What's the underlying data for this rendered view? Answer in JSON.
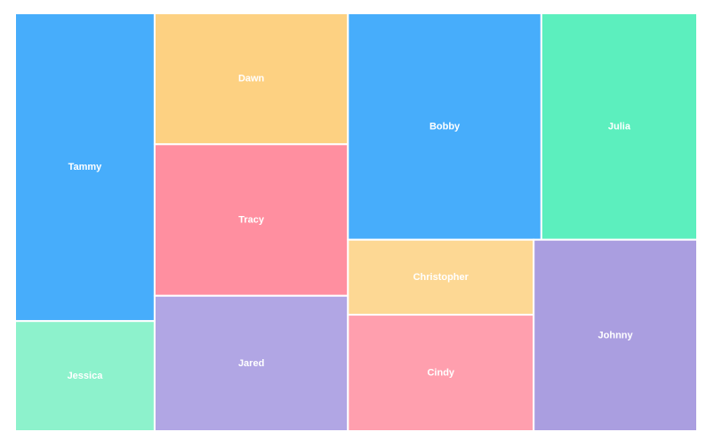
{
  "chart_data": {
    "type": "treemap",
    "categories": [
      "Tammy",
      "Jessica",
      "Dawn",
      "Tracy",
      "Jared",
      "Bobby",
      "Julia",
      "Christopher",
      "Cindy",
      "Johnny"
    ],
    "values": [
      151,
      54,
      89,
      103,
      92,
      154,
      124,
      49,
      76,
      110
    ],
    "colors": [
      "#47adfb",
      "#8df2cc",
      "#fdd182",
      "#ff8fa0",
      "#b1a6e4",
      "#47adfb",
      "#5cefbe",
      "#fdd894",
      "#ff9fae",
      "#aa9ee0"
    ]
  }
}
